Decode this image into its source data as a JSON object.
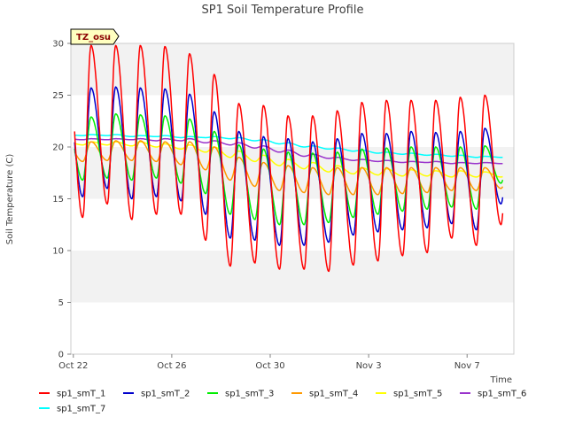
{
  "chart_data": {
    "type": "line",
    "title": "SP1 Soil Temperature Profile",
    "xlabel": "Time",
    "ylabel": "Soil Temperature (C)",
    "ylim": [
      0,
      30
    ],
    "yticks": [
      0,
      5,
      10,
      15,
      20,
      25,
      30
    ],
    "xlim_days": [
      -0.1,
      17.9
    ],
    "xticks": [
      {
        "day": 0,
        "label": "Oct 22"
      },
      {
        "day": 4,
        "label": "Oct 26"
      },
      {
        "day": 8,
        "label": "Oct 30"
      },
      {
        "day": 12,
        "label": "Nov 3"
      },
      {
        "day": 16,
        "label": "Nov 7"
      }
    ],
    "badge": "TZ_osu",
    "grid": "horizontal bands",
    "legend_position": "bottom",
    "series": [
      {
        "name": "sp1_smT_1",
        "color": "#ff0000",
        "daily_max": [
          29.8,
          29.8,
          29.8,
          29.7,
          29.0,
          27.0,
          24.2,
          24.0,
          23.0,
          23.0,
          23.5,
          24.3,
          24.5,
          24.5,
          24.5,
          24.8,
          25.0,
          24.8
        ],
        "daily_min": [
          13.2,
          14.5,
          13.0,
          13.5,
          13.5,
          11.0,
          8.5,
          8.8,
          8.2,
          8.2,
          8.0,
          8.6,
          9.0,
          9.5,
          9.8,
          11.2,
          10.5,
          12.5
        ]
      },
      {
        "name": "sp1_smT_2",
        "color": "#0000cc",
        "daily_max": [
          25.7,
          25.8,
          25.7,
          25.6,
          25.1,
          23.4,
          21.5,
          21.0,
          20.8,
          20.5,
          20.8,
          21.3,
          21.3,
          21.5,
          21.4,
          21.5,
          21.8,
          21.7
        ],
        "daily_min": [
          15.2,
          16.0,
          15.0,
          15.2,
          14.8,
          13.5,
          11.2,
          11.0,
          10.5,
          10.5,
          10.8,
          11.5,
          11.8,
          12.0,
          12.2,
          12.6,
          12.0,
          14.5
        ]
      },
      {
        "name": "sp1_smT_3",
        "color": "#00ee00",
        "daily_max": [
          22.9,
          23.2,
          23.1,
          23.0,
          22.7,
          21.5,
          20.2,
          19.8,
          19.5,
          19.4,
          19.5,
          19.8,
          19.9,
          20.0,
          20.0,
          20.0,
          20.1,
          20.1
        ],
        "daily_min": [
          16.8,
          17.0,
          16.8,
          17.0,
          16.5,
          15.5,
          13.5,
          13.0,
          12.5,
          12.5,
          12.7,
          13.2,
          13.5,
          13.8,
          14.0,
          14.2,
          14.0,
          16.5
        ]
      },
      {
        "name": "sp1_smT_4",
        "color": "#ff9900",
        "daily_max": [
          20.5,
          20.6,
          20.6,
          20.5,
          20.5,
          20.0,
          19.0,
          18.5,
          18.2,
          18.0,
          18.0,
          18.0,
          18.0,
          18.0,
          18.0,
          18.0,
          18.0,
          18.0
        ],
        "daily_min": [
          18.6,
          18.7,
          18.7,
          18.6,
          18.3,
          17.8,
          16.8,
          16.2,
          15.8,
          15.6,
          15.4,
          15.4,
          15.4,
          15.5,
          15.6,
          15.8,
          15.8,
          16.0
        ]
      },
      {
        "name": "sp1_smT_5",
        "color": "#ffff00",
        "daily_max": [
          20.5,
          20.5,
          20.5,
          20.3,
          20.2,
          20.0,
          19.6,
          19.2,
          18.8,
          18.5,
          18.2,
          18.0,
          17.9,
          17.8,
          17.7,
          17.7,
          17.6,
          17.6
        ],
        "daily_min": [
          20.2,
          20.2,
          20.1,
          20.0,
          19.8,
          19.5,
          19.0,
          18.6,
          18.2,
          17.9,
          17.6,
          17.4,
          17.3,
          17.2,
          17.2,
          17.1,
          17.1,
          17.1
        ]
      },
      {
        "name": "sp1_smT_6",
        "color": "#9933cc",
        "daily_max": [
          20.8,
          20.8,
          20.8,
          20.8,
          20.8,
          20.6,
          20.4,
          20.1,
          19.7,
          19.3,
          19.0,
          18.8,
          18.7,
          18.6,
          18.6,
          18.5,
          18.5,
          18.4
        ],
        "daily_min": [
          20.7,
          20.7,
          20.7,
          20.6,
          20.6,
          20.4,
          20.2,
          19.9,
          19.5,
          19.1,
          18.9,
          18.7,
          18.6,
          18.5,
          18.5,
          18.4,
          18.4,
          18.4
        ]
      },
      {
        "name": "sp1_smT_7",
        "color": "#00ffff",
        "daily_max": [
          21.2,
          21.2,
          21.1,
          21.1,
          21.0,
          21.0,
          20.9,
          20.7,
          20.4,
          20.1,
          19.9,
          19.7,
          19.5,
          19.4,
          19.3,
          19.2,
          19.1,
          19.1
        ],
        "daily_min": [
          21.1,
          21.1,
          21.0,
          21.0,
          20.9,
          20.9,
          20.8,
          20.6,
          20.3,
          20.0,
          19.8,
          19.6,
          19.4,
          19.3,
          19.2,
          19.1,
          19.0,
          19.0
        ]
      }
    ]
  }
}
